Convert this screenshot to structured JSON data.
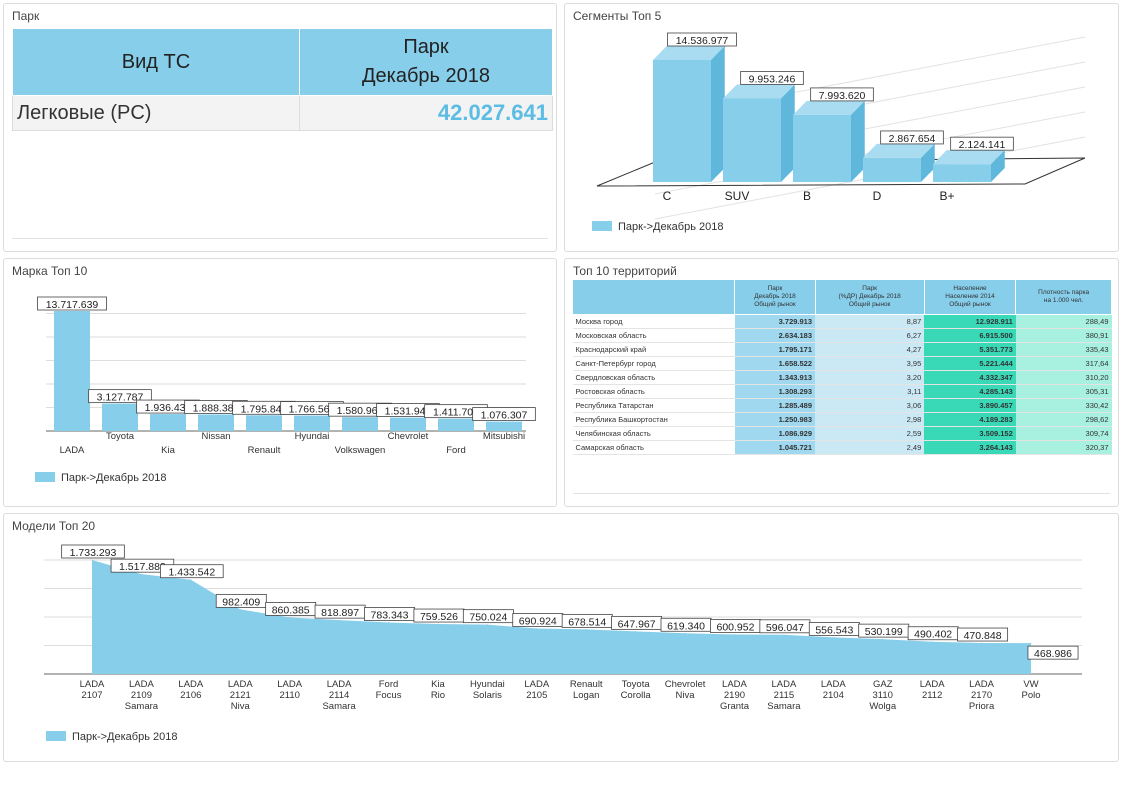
{
  "colors": {
    "bar": "#87ceeb",
    "value_highlight": "#5bbde4"
  },
  "park": {
    "title": "Парк",
    "col1": "Вид ТС",
    "col2_line1": "Парк",
    "col2_line2": "Декабрь 2018",
    "row_label": "Легковые (PC)",
    "row_value": "42.027.641"
  },
  "segments": {
    "title": "Сегменты Топ 5",
    "legend": "Парк->Декабрь 2018",
    "chart_data": {
      "type": "bar",
      "categories": [
        "C",
        "SUV",
        "B",
        "D",
        "B+"
      ],
      "values": [
        14536977,
        9953246,
        7993620,
        2867654,
        2124141
      ],
      "labels": [
        "14.536.977",
        "9.953.246",
        "7.993.620",
        "2.867.654",
        "2.124.141"
      ]
    }
  },
  "brands": {
    "title": "Марка Топ 10",
    "legend": "Парк->Декабрь 2018",
    "chart_data": {
      "type": "bar",
      "categories": [
        "LADA",
        "Toyota",
        "Kia",
        "Nissan",
        "Renault",
        "Hyundai",
        "Volkswagen",
        "Chevrolet",
        "Ford",
        "Mitsubishi"
      ],
      "values": [
        13717639,
        3127787,
        1936436,
        1888388,
        1795844,
        1766563,
        1580967,
        1531942,
        1411706,
        1076307
      ],
      "labels": [
        "13.717.639",
        "3.127.787",
        "1.936.436",
        "1.888.388",
        "1.795.844",
        "1.766.563",
        "1.580.967",
        "1.531.942",
        "1.411.706",
        "1.076.307"
      ]
    }
  },
  "territories": {
    "title": "Топ 10 территорий",
    "headers": [
      "",
      "Парк\nДекабрь 2018\nОбщий рынок",
      "Парк\n(%ДР) Декабрь 2018\nОбщий рынок",
      "Население\nНаселение 2014\nОбщий рынок",
      "Плотность парка\nна 1.000 чел."
    ],
    "rows": [
      [
        "Москва город",
        "3.729.913",
        "8,87",
        "12.928.911",
        "288,49"
      ],
      [
        "Московская область",
        "2.634.183",
        "6,27",
        "6.915.500",
        "380,91"
      ],
      [
        "Краснодарский край",
        "1.795.171",
        "4,27",
        "5.351.773",
        "335,43"
      ],
      [
        "Санкт-Петербург город",
        "1.658.522",
        "3,95",
        "5.221.444",
        "317,64"
      ],
      [
        "Свердловская область",
        "1.343.913",
        "3,20",
        "4.332.347",
        "310,20"
      ],
      [
        "Ростовская область",
        "1.308.293",
        "3,11",
        "4.285.143",
        "305,31"
      ],
      [
        "Республика Татарстан",
        "1.285.489",
        "3,06",
        "3.890.457",
        "330,42"
      ],
      [
        "Республика Башкортостан",
        "1.250.983",
        "2,98",
        "4.189.283",
        "298,62"
      ],
      [
        "Челябинская область",
        "1.086.929",
        "2,59",
        "3.509.152",
        "309,74"
      ],
      [
        "Самарская область",
        "1.045.721",
        "2,49",
        "3.264.143",
        "320,37"
      ]
    ]
  },
  "models": {
    "title": "Модели Топ 20",
    "legend": "Парк->Декабрь 2018",
    "chart_data": {
      "type": "area",
      "categories": [
        [
          "LADA",
          "2107",
          ""
        ],
        [
          "LADA",
          "2109",
          "Samara"
        ],
        [
          "LADA",
          "2106",
          ""
        ],
        [
          "LADA",
          "2121",
          "Niva"
        ],
        [
          "LADA",
          "2110",
          ""
        ],
        [
          "LADA",
          "2114",
          "Samara"
        ],
        [
          "Ford",
          "Focus",
          ""
        ],
        [
          "Kia",
          "Rio",
          ""
        ],
        [
          "Hyundai",
          "Solaris",
          ""
        ],
        [
          "LADA",
          "2105",
          ""
        ],
        [
          "Renault",
          "Logan",
          ""
        ],
        [
          "Toyota",
          "Corolla",
          ""
        ],
        [
          "Chevrolet",
          "Niva",
          ""
        ],
        [
          "LADA",
          "2190",
          "Granta"
        ],
        [
          "LADA",
          "2115",
          "Samara"
        ],
        [
          "LADA",
          "2104",
          ""
        ],
        [
          "GAZ",
          "3110",
          "Wolga"
        ],
        [
          "LADA",
          "2112",
          ""
        ],
        [
          "LADA",
          "2170",
          "Priora"
        ],
        [
          "VW",
          "Polo",
          ""
        ]
      ],
      "values": [
        1733293,
        1517882,
        1433542,
        982409,
        860385,
        818897,
        783343,
        759526,
        750024,
        690924,
        678514,
        647967,
        619340,
        600952,
        596047,
        556543,
        530199,
        490402,
        470848,
        468986
      ],
      "labels": [
        "1.733.293",
        "1.517.882",
        "1.433.542",
        "982.409",
        "860.385",
        "818.897",
        "783.343",
        "759.526",
        "750.024",
        "690.924",
        "678.514",
        "647.967",
        "619.340",
        "600.952",
        "596.047",
        "556.543",
        "530.199",
        "490.402",
        "470.848",
        "468.986"
      ]
    }
  }
}
